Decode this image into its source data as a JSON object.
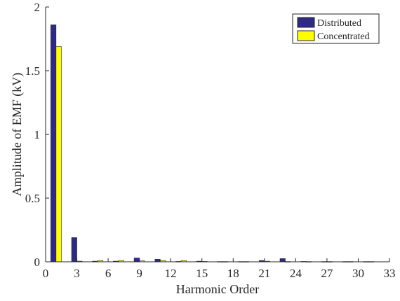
{
  "chart_data": {
    "type": "bar",
    "xlabel": "Harmonic Order",
    "ylabel": "Amplitude of EMF (kV)",
    "xlim": [
      0,
      33
    ],
    "ylim": [
      0,
      2
    ],
    "xticks": [
      "0",
      "3",
      "6",
      "9",
      "12",
      "15",
      "18",
      "21",
      "24",
      "27",
      "30",
      "33"
    ],
    "yticks": [
      "0",
      "0.5",
      "1",
      "1.5",
      "2"
    ],
    "grid": false,
    "legend_position": "top-right",
    "categories": [
      1,
      3,
      5,
      7,
      9,
      11,
      13,
      15,
      17,
      19,
      21,
      23,
      25,
      27,
      29,
      31
    ],
    "series": [
      {
        "name": "Distributed",
        "color": "#2e2a85",
        "values": [
          1.86,
          0.19,
          0.005,
          0.005,
          0.03,
          0.02,
          0.003,
          0.005,
          0.002,
          0.002,
          0.01,
          0.025,
          0.003,
          0.002,
          0.002,
          0.002
        ]
      },
      {
        "name": "Concentrated",
        "color": "#ffff00",
        "values": [
          1.69,
          0.005,
          0.01,
          0.01,
          0.008,
          0.01,
          0.01,
          0.003,
          0.002,
          0.002,
          0.005,
          0.002,
          0.002,
          0.002,
          0.002,
          0.002
        ]
      }
    ]
  }
}
